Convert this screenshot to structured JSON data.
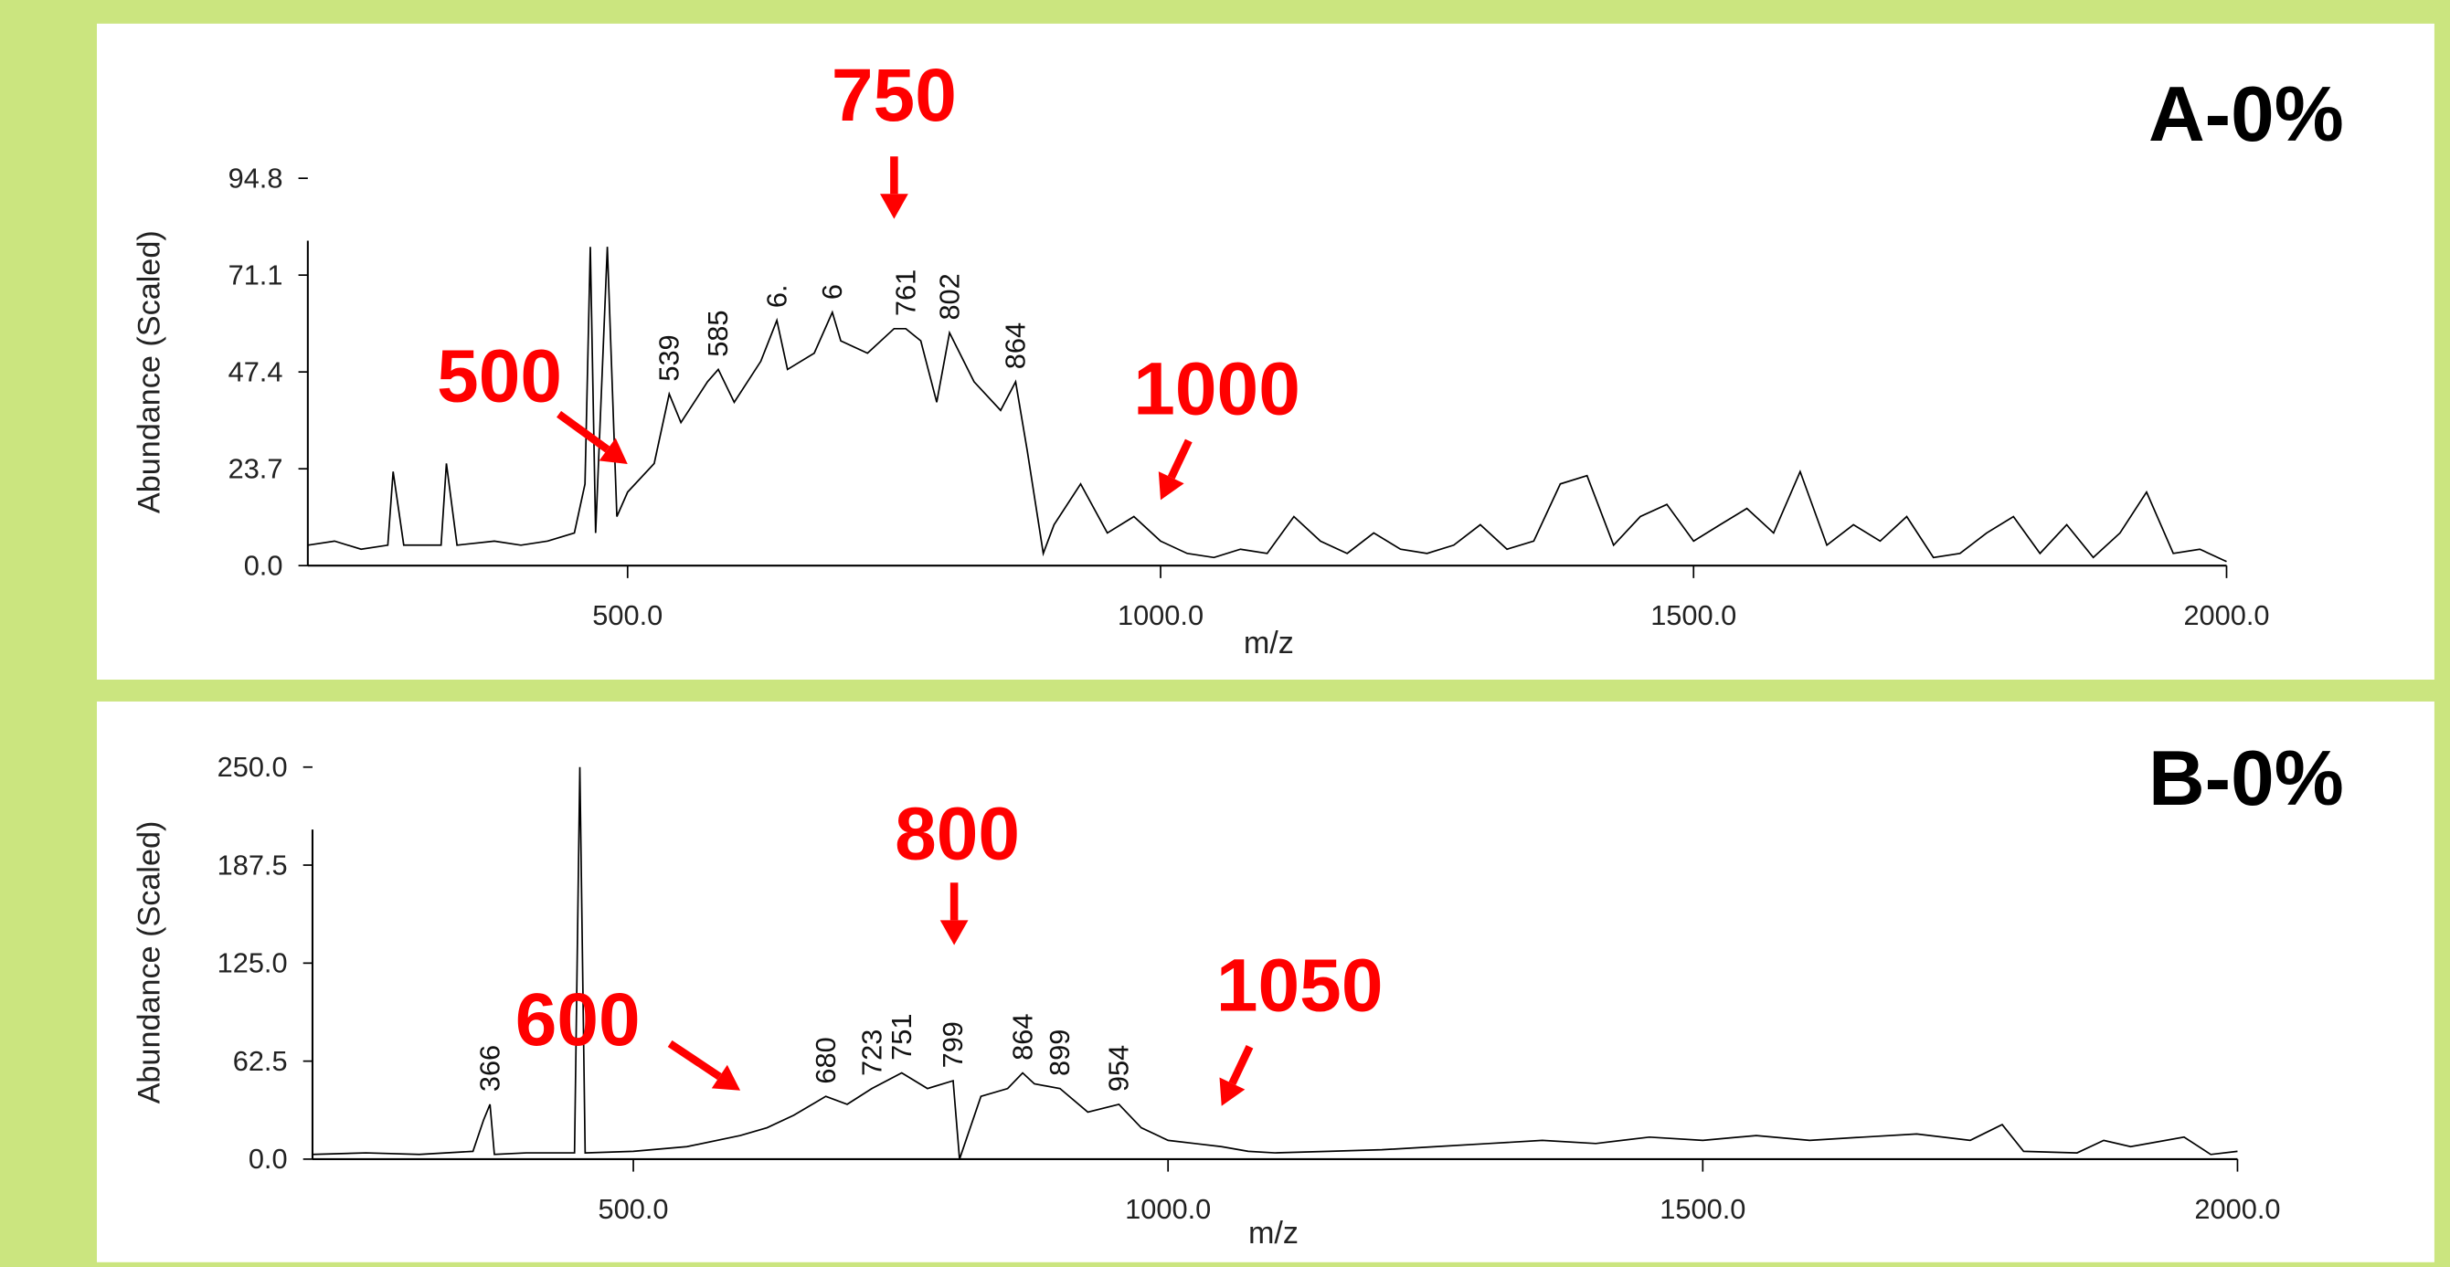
{
  "chart_data": [
    {
      "type": "line",
      "title": "A-0%",
      "x_label": "m/z",
      "y_label": "Abundance (Scaled)",
      "color": "#000000",
      "xlim": [
        200,
        2000
      ],
      "ylim": [
        0,
        94.8
      ],
      "xticks": [
        {
          "value": 500,
          "label": "500.0"
        },
        {
          "value": 1000,
          "label": "1000.0"
        },
        {
          "value": 1500,
          "label": "1500.0"
        },
        {
          "value": 2000,
          "label": "2000.0"
        }
      ],
      "yticks": [
        {
          "value": 0,
          "label": "0.0"
        },
        23.7,
        47.4,
        71.1,
        94.8
      ],
      "x": [
        200,
        225,
        250,
        275,
        280,
        290,
        325,
        330,
        340,
        375,
        400,
        425,
        450,
        460,
        465,
        470,
        481,
        490,
        500,
        525,
        539,
        550,
        575,
        585,
        600,
        625,
        640,
        650,
        675,
        692,
        700,
        725,
        750,
        761,
        775,
        790,
        802,
        825,
        850,
        864,
        875,
        890,
        900,
        925,
        950,
        975,
        1000,
        1025,
        1050,
        1075,
        1100,
        1125,
        1150,
        1175,
        1200,
        1225,
        1250,
        1275,
        1300,
        1325,
        1350,
        1375,
        1400,
        1425,
        1450,
        1475,
        1500,
        1525,
        1550,
        1575,
        1600,
        1625,
        1650,
        1675,
        1700,
        1725,
        1750,
        1775,
        1800,
        1825,
        1850,
        1875,
        1900,
        1925,
        1950,
        1975,
        2000
      ],
      "values": [
        5,
        6,
        4,
        5,
        23,
        5,
        5,
        25,
        5,
        6,
        5,
        6,
        8,
        20,
        78,
        8,
        78,
        12,
        18,
        25,
        42,
        35,
        45,
        48,
        40,
        50,
        60,
        48,
        52,
        62,
        55,
        52,
        58,
        58,
        55,
        40,
        57,
        45,
        38,
        45,
        28,
        3,
        10,
        20,
        8,
        12,
        6,
        3,
        2,
        4,
        3,
        12,
        6,
        3,
        8,
        4,
        3,
        5,
        10,
        4,
        6,
        20,
        22,
        5,
        12,
        15,
        6,
        10,
        14,
        8,
        23,
        5,
        10,
        6,
        12,
        2,
        3,
        8,
        12,
        3,
        10,
        2,
        8,
        18,
        3,
        4,
        1
      ],
      "peak_labels": [
        539,
        585,
        {
          "value": 640,
          "label": "6."
        },
        {
          "value": 692,
          "label": "6"
        },
        761,
        802,
        864
      ],
      "callouts": [
        500,
        750,
        1000
      ]
    },
    {
      "type": "line",
      "title": "B-0%",
      "x_label": "m/z",
      "y_label": "Abundance (Scaled)",
      "color": "#000000",
      "xlim": [
        200,
        2000
      ],
      "ylim": [
        0,
        250
      ],
      "xticks": [
        {
          "value": 500,
          "label": "500.0"
        },
        {
          "value": 1000,
          "label": "1000.0"
        },
        {
          "value": 1500,
          "label": "1500.0"
        },
        {
          "value": 2000,
          "label": "2000.0"
        }
      ],
      "yticks": [
        {
          "value": 0,
          "label": "0.0"
        },
        62.5,
        {
          "value": 125,
          "label": "125.0"
        },
        187.5,
        {
          "value": 250,
          "label": "250.0"
        }
      ],
      "x": [
        200,
        250,
        300,
        350,
        360,
        366,
        370,
        400,
        445,
        450,
        455,
        500,
        550,
        600,
        625,
        650,
        680,
        700,
        723,
        751,
        775,
        799,
        805,
        825,
        850,
        864,
        875,
        899,
        925,
        954,
        975,
        1000,
        1025,
        1050,
        1075,
        1100,
        1150,
        1200,
        1250,
        1300,
        1350,
        1400,
        1450,
        1500,
        1550,
        1600,
        1650,
        1700,
        1750,
        1780,
        1800,
        1850,
        1875,
        1900,
        1950,
        1975,
        2000
      ],
      "values": [
        3,
        4,
        3,
        5,
        25,
        35,
        3,
        4,
        4,
        250,
        4,
        5,
        8,
        15,
        20,
        28,
        40,
        35,
        45,
        55,
        45,
        50,
        0,
        40,
        45,
        55,
        48,
        45,
        30,
        35,
        20,
        12,
        10,
        8,
        5,
        4,
        5,
        6,
        8,
        10,
        12,
        10,
        14,
        12,
        15,
        12,
        14,
        16,
        12,
        22,
        5,
        4,
        12,
        8,
        14,
        3,
        5
      ],
      "peak_labels": [
        366,
        680,
        723,
        751,
        799,
        864,
        899,
        954
      ],
      "callouts": [
        600,
        800,
        1050
      ]
    }
  ]
}
